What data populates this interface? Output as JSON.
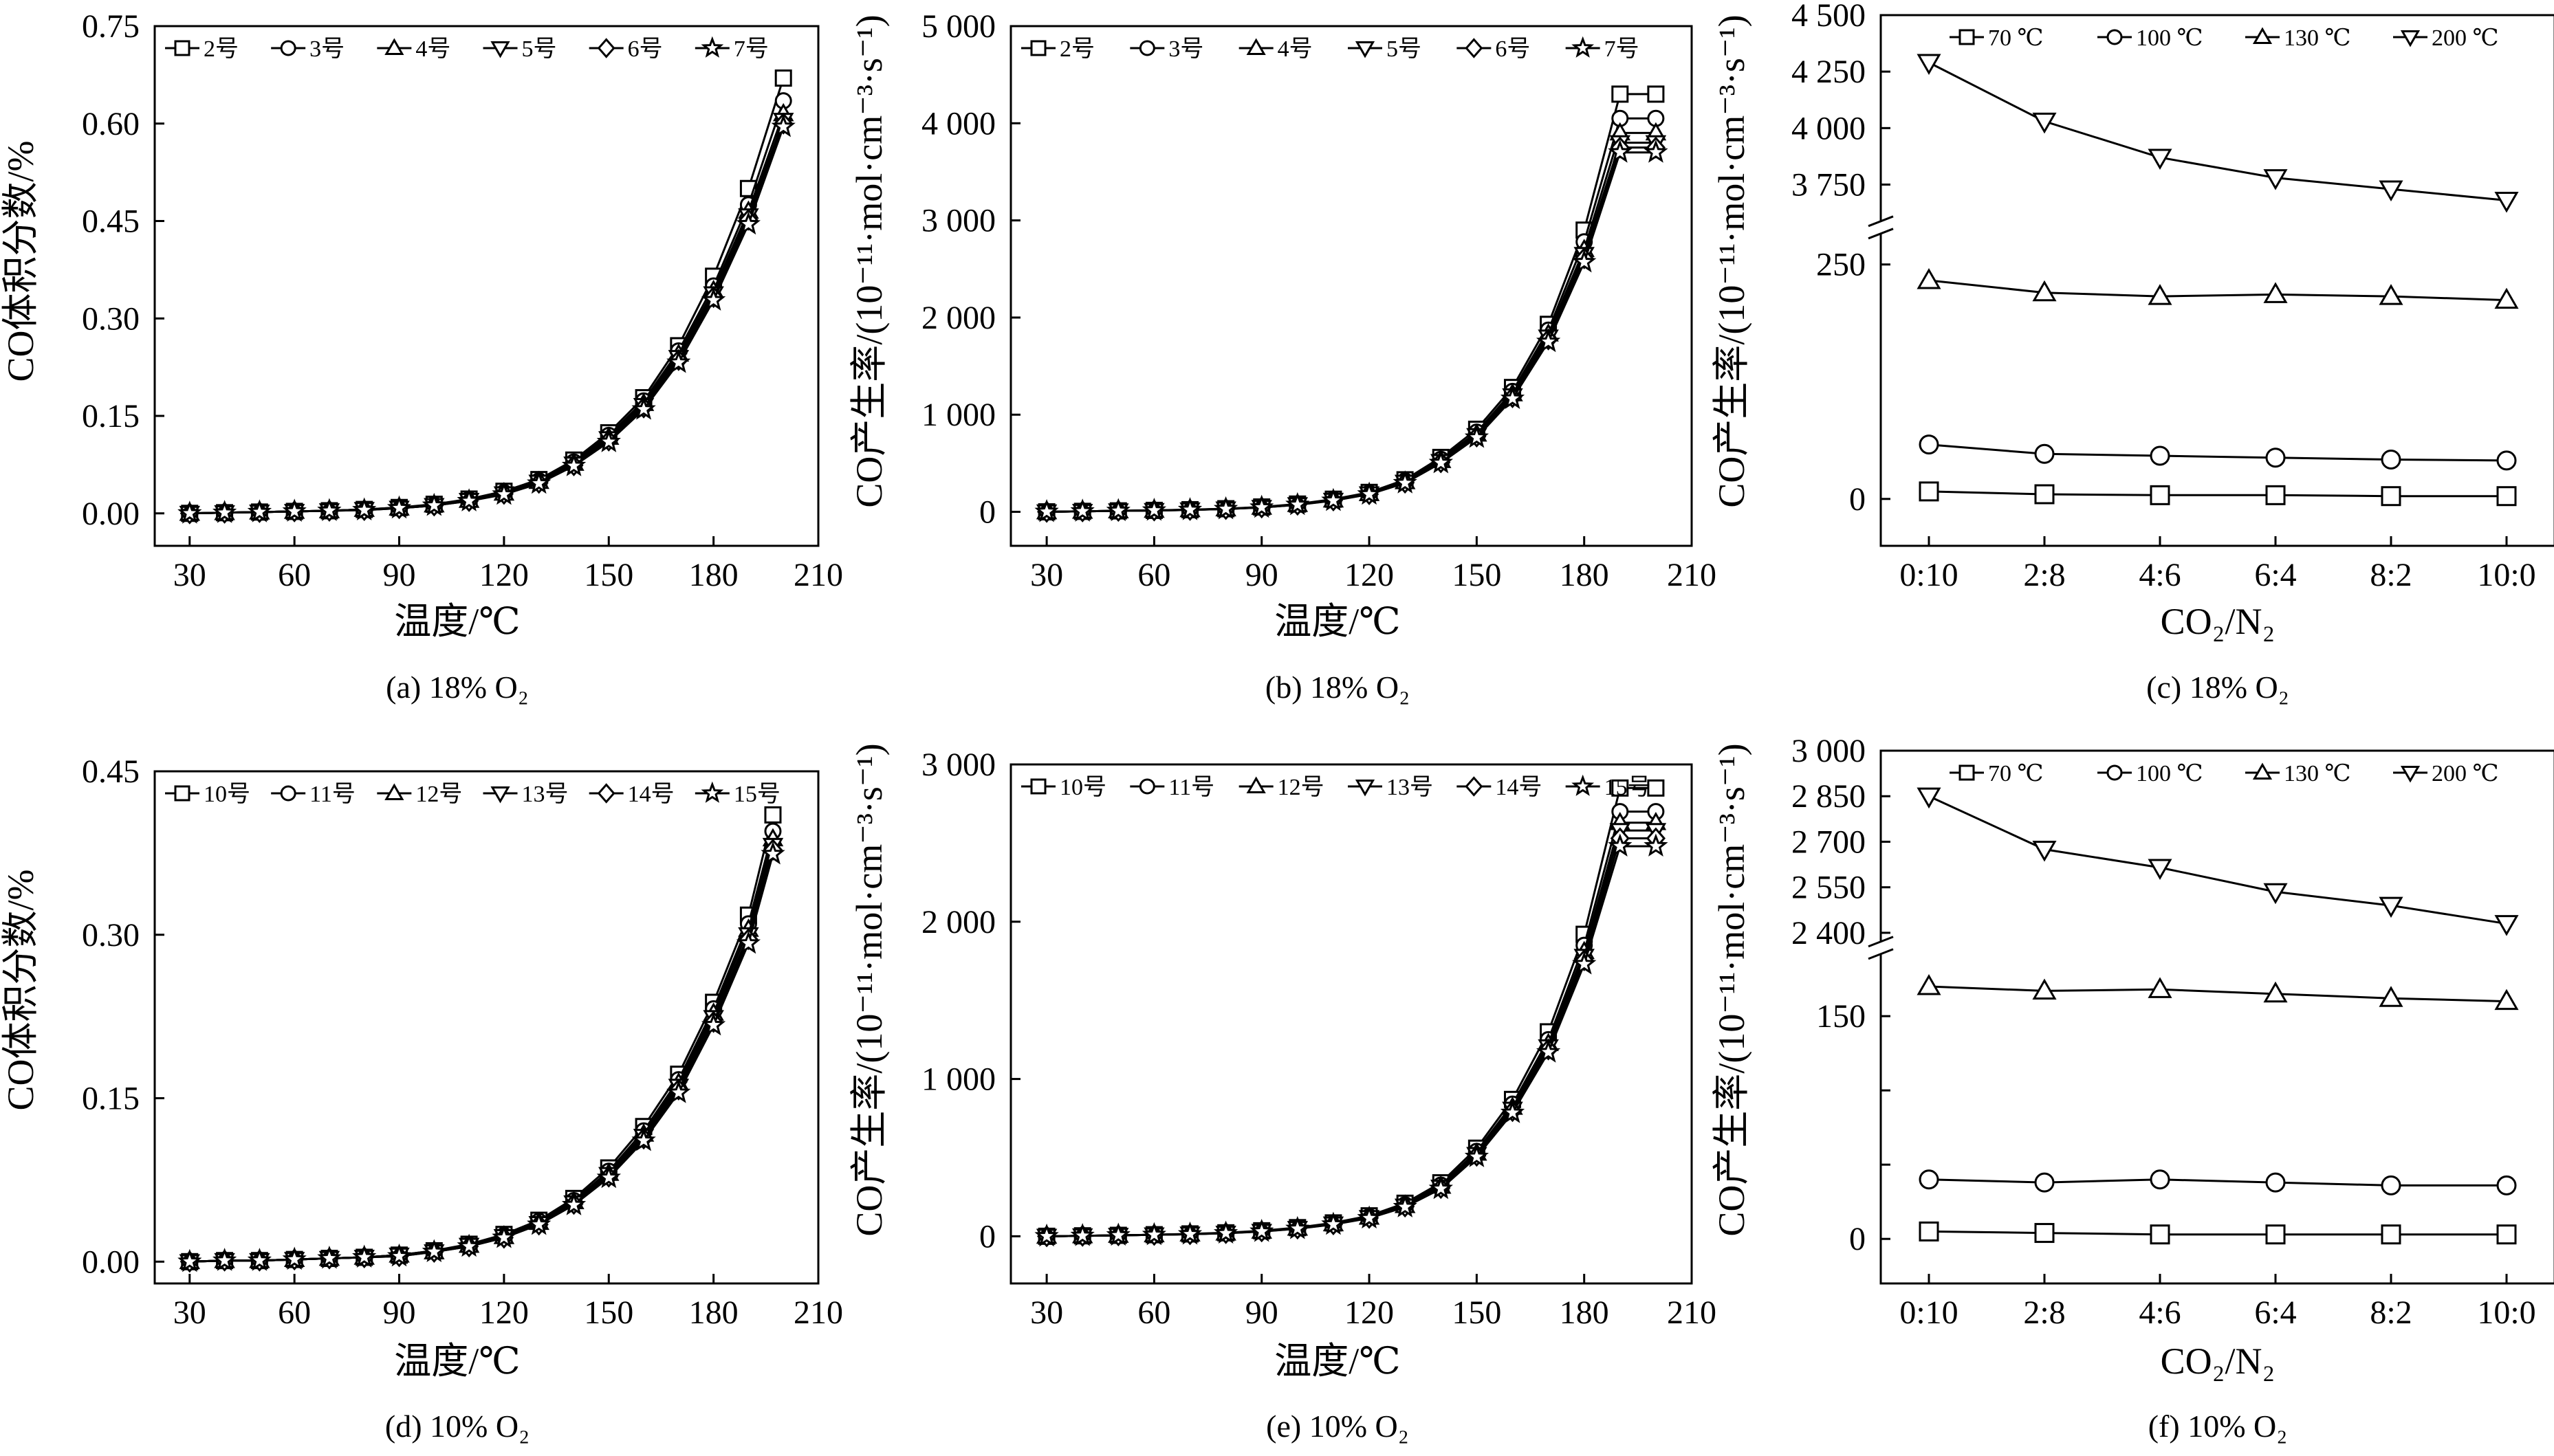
{
  "figure": {
    "charts": [
      {
        "caption": "(a) 18% O₂",
        "ylabel": "CO体积分数/%",
        "xlabel": "温度/℃"
      },
      {
        "caption": "(b) 18% O₂",
        "ylabel": "CO产生率/(10⁻¹¹·mol·cm⁻³·s⁻¹)",
        "xlabel": "温度/℃"
      },
      {
        "caption": "(c) 18% O₂",
        "ylabel": "CO产生率/(10⁻¹¹·mol·cm⁻³·s⁻¹)",
        "xlabel": "CO₂/N₂"
      },
      {
        "caption": "(d) 10% O₂",
        "ylabel": "CO体积分数/%",
        "xlabel": "温度/℃"
      },
      {
        "caption": "(e) 10% O₂",
        "ylabel": "CO产生率/(10⁻¹¹·mol·cm⁻³·s⁻¹)",
        "xlabel": "温度/℃"
      },
      {
        "caption": "(f) 10% O₂",
        "ylabel": "CO产生率/(10⁻¹¹·mol·cm⁻³·s⁻¹)",
        "xlabel": "CO₂/N₂"
      }
    ]
  },
  "chart_data": [
    {
      "type": "line",
      "title": "(a) 18% O₂",
      "xlabel": "温度/℃",
      "ylabel": "CO体积分数/%",
      "xlim": [
        20,
        210
      ],
      "ylim": [
        -0.05,
        0.75
      ],
      "xticks": [
        30,
        60,
        90,
        120,
        150,
        180,
        210
      ],
      "yticks": [
        0.0,
        0.15,
        0.3,
        0.45,
        0.6,
        0.75
      ],
      "ytick_labels": [
        "0.00",
        "0.15",
        "0.30",
        "0.45",
        "0.60",
        "0.75"
      ],
      "legend": "top-left",
      "x": [
        30,
        40,
        50,
        60,
        70,
        80,
        90,
        100,
        110,
        120,
        130,
        140,
        150,
        160,
        170,
        180,
        190,
        200
      ],
      "series": [
        {
          "name": "2号",
          "marker": "square",
          "values": [
            0.0,
            0.001,
            0.002,
            0.003,
            0.004,
            0.006,
            0.009,
            0.014,
            0.022,
            0.034,
            0.052,
            0.082,
            0.124,
            0.178,
            0.258,
            0.365,
            0.5,
            0.67
          ]
        },
        {
          "name": "3号",
          "marker": "circle",
          "values": [
            0.0,
            0.001,
            0.002,
            0.003,
            0.004,
            0.006,
            0.009,
            0.013,
            0.021,
            0.032,
            0.05,
            0.079,
            0.12,
            0.173,
            0.25,
            0.35,
            0.475,
            0.635
          ]
        },
        {
          "name": "4号",
          "marker": "triangle-up",
          "values": [
            0.0,
            0.001,
            0.002,
            0.003,
            0.004,
            0.006,
            0.008,
            0.013,
            0.02,
            0.031,
            0.049,
            0.077,
            0.117,
            0.169,
            0.245,
            0.343,
            0.465,
            0.615
          ]
        },
        {
          "name": "5号",
          "marker": "triangle-down",
          "values": [
            0.0,
            0.001,
            0.002,
            0.003,
            0.004,
            0.006,
            0.008,
            0.012,
            0.02,
            0.03,
            0.048,
            0.076,
            0.115,
            0.166,
            0.24,
            0.338,
            0.458,
            0.605
          ]
        },
        {
          "name": "6号",
          "marker": "diamond",
          "values": [
            0.0,
            0.001,
            0.002,
            0.003,
            0.004,
            0.005,
            0.008,
            0.012,
            0.019,
            0.03,
            0.047,
            0.074,
            0.112,
            0.163,
            0.236,
            0.333,
            0.452,
            0.6
          ]
        },
        {
          "name": "7号",
          "marker": "star",
          "values": [
            0.0,
            0.001,
            0.002,
            0.003,
            0.004,
            0.005,
            0.008,
            0.012,
            0.019,
            0.029,
            0.046,
            0.073,
            0.11,
            0.16,
            0.232,
            0.328,
            0.445,
            0.595
          ]
        }
      ]
    },
    {
      "type": "line",
      "title": "(b) 18% O₂",
      "xlabel": "温度/℃",
      "ylabel": "CO产生率/(10⁻¹¹·mol·cm⁻³·s⁻¹)",
      "xlim": [
        20,
        210
      ],
      "ylim": [
        -350,
        5000
      ],
      "xticks": [
        30,
        60,
        90,
        120,
        150,
        180,
        210
      ],
      "yticks": [
        0,
        1000,
        2000,
        3000,
        4000,
        5000
      ],
      "ytick_labels": [
        "0",
        "1 000",
        "2 000",
        "3 000",
        "4 000",
        "5 000"
      ],
      "legend": "top-left",
      "x": [
        30,
        40,
        50,
        60,
        70,
        80,
        90,
        100,
        110,
        120,
        130,
        140,
        150,
        160,
        170,
        180,
        190,
        200
      ],
      "series": [
        {
          "name": "2号",
          "marker": "square",
          "values": [
            0,
            5,
            10,
            15,
            22,
            32,
            50,
            80,
            130,
            200,
            330,
            560,
            850,
            1280,
            1930,
            2900,
            4300,
            4300
          ]
        },
        {
          "name": "3号",
          "marker": "circle",
          "values": [
            0,
            5,
            10,
            15,
            21,
            31,
            48,
            77,
            124,
            192,
            318,
            540,
            820,
            1240,
            1870,
            2780,
            4050,
            4050
          ]
        },
        {
          "name": "4号",
          "marker": "triangle-up",
          "values": [
            0,
            5,
            10,
            15,
            21,
            30,
            47,
            75,
            121,
            188,
            310,
            527,
            800,
            1215,
            1830,
            2700,
            3900,
            3900
          ]
        },
        {
          "name": "5号",
          "marker": "triangle-down",
          "values": [
            0,
            5,
            10,
            14,
            20,
            30,
            46,
            74,
            119,
            185,
            305,
            518,
            785,
            1195,
            1800,
            2650,
            3800,
            3800
          ]
        },
        {
          "name": "6号",
          "marker": "diamond",
          "values": [
            0,
            5,
            10,
            14,
            20,
            29,
            45,
            73,
            117,
            182,
            300,
            510,
            775,
            1180,
            1775,
            2610,
            3750,
            3750
          ]
        },
        {
          "name": "7号",
          "marker": "star",
          "values": [
            0,
            5,
            10,
            14,
            20,
            29,
            45,
            72,
            115,
            180,
            296,
            503,
            765,
            1165,
            1750,
            2570,
            3700,
            3700
          ]
        }
      ]
    },
    {
      "type": "line",
      "title": "(c) 18% O₂",
      "xlabel": "CO₂/N₂",
      "ylabel": "CO产生率/(10⁻¹¹·mol·cm⁻³·s⁻¹)",
      "categories": [
        "0:10",
        "2:8",
        "4:6",
        "6:4",
        "8:2",
        "10:0"
      ],
      "broken_axis": true,
      "ylim_lower": [
        -50,
        280
      ],
      "ylim_upper": [
        3600,
        4500
      ],
      "yticks_lower": [
        0,
        250
      ],
      "yticks_upper": [
        3750,
        4000,
        4250,
        4500
      ],
      "ytick_labels_lower": [
        "0",
        "250"
      ],
      "ytick_labels_upper": [
        "3 750",
        "4 000",
        "4 250",
        "4 500"
      ],
      "legend": "top-right",
      "series": [
        {
          "name": "70 ℃",
          "marker": "square",
          "values": [
            8,
            5,
            4,
            4,
            3,
            3
          ]
        },
        {
          "name": "100 ℃",
          "marker": "circle",
          "values": [
            58,
            48,
            46,
            44,
            42,
            41
          ]
        },
        {
          "name": "130 ℃",
          "marker": "triangle-up",
          "values": [
            233,
            220,
            216,
            218,
            216,
            212
          ]
        },
        {
          "name": "200 ℃",
          "marker": "triangle-down",
          "values": [
            4290,
            4030,
            3870,
            3780,
            3730,
            3680
          ]
        }
      ]
    },
    {
      "type": "line",
      "title": "(d) 10% O₂",
      "xlabel": "温度/℃",
      "ylabel": "CO体积分数/%",
      "xlim": [
        20,
        210
      ],
      "ylim": [
        -0.02,
        0.45
      ],
      "xticks": [
        30,
        60,
        90,
        120,
        150,
        180,
        210
      ],
      "yticks": [
        0.0,
        0.15,
        0.3,
        0.45
      ],
      "ytick_labels": [
        "0.00",
        "0.15",
        "0.30",
        "0.45"
      ],
      "legend": "top-left",
      "x": [
        30,
        40,
        50,
        60,
        70,
        80,
        90,
        100,
        110,
        120,
        130,
        140,
        150,
        160,
        170,
        180,
        190,
        197
      ],
      "series": [
        {
          "name": "10号",
          "marker": "square",
          "values": [
            0.0,
            0.001,
            0.001,
            0.002,
            0.003,
            0.004,
            0.006,
            0.01,
            0.016,
            0.025,
            0.038,
            0.058,
            0.086,
            0.124,
            0.172,
            0.238,
            0.318,
            0.41
          ]
        },
        {
          "name": "11号",
          "marker": "circle",
          "values": [
            0.0,
            0.001,
            0.001,
            0.002,
            0.003,
            0.004,
            0.006,
            0.01,
            0.015,
            0.024,
            0.037,
            0.056,
            0.083,
            0.12,
            0.167,
            0.232,
            0.31,
            0.395
          ]
        },
        {
          "name": "12号",
          "marker": "triangle-up",
          "values": [
            0.0,
            0.001,
            0.001,
            0.002,
            0.003,
            0.004,
            0.006,
            0.009,
            0.015,
            0.023,
            0.036,
            0.055,
            0.081,
            0.117,
            0.164,
            0.228,
            0.305,
            0.388
          ]
        },
        {
          "name": "13号",
          "marker": "triangle-down",
          "values": [
            0.0,
            0.001,
            0.001,
            0.002,
            0.003,
            0.004,
            0.006,
            0.009,
            0.015,
            0.023,
            0.035,
            0.054,
            0.08,
            0.115,
            0.161,
            0.224,
            0.3,
            0.382
          ]
        },
        {
          "name": "14号",
          "marker": "diamond",
          "values": [
            0.0,
            0.001,
            0.001,
            0.002,
            0.003,
            0.004,
            0.005,
            0.009,
            0.014,
            0.022,
            0.034,
            0.053,
            0.078,
            0.113,
            0.158,
            0.22,
            0.296,
            0.378
          ]
        },
        {
          "name": "15号",
          "marker": "star",
          "values": [
            0.0,
            0.001,
            0.001,
            0.002,
            0.003,
            0.004,
            0.005,
            0.009,
            0.014,
            0.022,
            0.034,
            0.052,
            0.077,
            0.111,
            0.155,
            0.217,
            0.292,
            0.374
          ]
        }
      ]
    },
    {
      "type": "line",
      "title": "(e) 10% O₂",
      "xlabel": "温度/℃",
      "ylabel": "CO产生率/(10⁻¹¹·mol·cm⁻³·s⁻¹)",
      "xlim": [
        20,
        210
      ],
      "ylim": [
        -300,
        3000
      ],
      "xticks": [
        30,
        60,
        90,
        120,
        150,
        180,
        210
      ],
      "yticks": [
        0,
        1000,
        2000,
        3000
      ],
      "ytick_labels": [
        "0",
        "1 000",
        "2 000",
        "3 000"
      ],
      "legend": "top-left",
      "x": [
        30,
        40,
        50,
        60,
        70,
        80,
        90,
        100,
        110,
        120,
        130,
        140,
        150,
        160,
        170,
        180,
        190,
        200
      ],
      "series": [
        {
          "name": "10号",
          "marker": "square",
          "values": [
            0,
            3,
            6,
            10,
            15,
            22,
            35,
            55,
            85,
            130,
            210,
            340,
            560,
            870,
            1300,
            1920,
            2850,
            2850
          ]
        },
        {
          "name": "11号",
          "marker": "circle",
          "values": [
            0,
            3,
            6,
            10,
            14,
            21,
            33,
            52,
            81,
            124,
            200,
            325,
            540,
            840,
            1250,
            1850,
            2700,
            2700
          ]
        },
        {
          "name": "12号",
          "marker": "triangle-up",
          "values": [
            0,
            3,
            6,
            9,
            14,
            20,
            32,
            51,
            79,
            121,
            195,
            318,
            528,
            820,
            1225,
            1810,
            2630,
            2630
          ]
        },
        {
          "name": "13号",
          "marker": "triangle-down",
          "values": [
            0,
            3,
            6,
            9,
            14,
            20,
            31,
            50,
            78,
            119,
            192,
            312,
            520,
            808,
            1205,
            1780,
            2580,
            2580
          ]
        },
        {
          "name": "14号",
          "marker": "diamond",
          "values": [
            0,
            3,
            6,
            9,
            13,
            20,
            31,
            49,
            76,
            117,
            189,
            307,
            512,
            796,
            1188,
            1755,
            2530,
            2530
          ]
        },
        {
          "name": "15号",
          "marker": "star",
          "values": [
            0,
            3,
            6,
            9,
            13,
            19,
            30,
            48,
            75,
            115,
            186,
            302,
            505,
            785,
            1170,
            1730,
            2480,
            2480
          ]
        }
      ]
    },
    {
      "type": "line",
      "title": "(f) 10% O₂",
      "xlabel": "CO₂/N₂",
      "ylabel": "CO产生率/(10⁻¹¹·mol·cm⁻³·s⁻¹)",
      "categories": [
        "0:10",
        "2:8",
        "4:6",
        "6:4",
        "8:2",
        "10:0"
      ],
      "broken_axis": true,
      "ylim_lower": [
        -30,
        190
      ],
      "ylim_upper": [
        2380,
        3000
      ],
      "yticks_lower": [
        0,
        50,
        100,
        150
      ],
      "yticks_upper": [
        2400,
        2550,
        2700,
        2850,
        3000
      ],
      "ytick_labels_lower": [
        "0",
        "",
        "",
        "150"
      ],
      "ytick_labels_upper": [
        "2 400",
        "2 550",
        "2 700",
        "2 850",
        "3 000"
      ],
      "legend": "top-right",
      "series": [
        {
          "name": "70 ℃",
          "marker": "square",
          "values": [
            5,
            4,
            3,
            3,
            3,
            3
          ]
        },
        {
          "name": "100 ℃",
          "marker": "circle",
          "values": [
            40,
            38,
            40,
            38,
            36,
            36
          ]
        },
        {
          "name": "130 ℃",
          "marker": "triangle-up",
          "values": [
            170,
            167,
            168,
            165,
            162,
            160
          ]
        },
        {
          "name": "200 ℃",
          "marker": "triangle-down",
          "values": [
            2850,
            2675,
            2615,
            2535,
            2490,
            2430
          ]
        }
      ]
    }
  ]
}
